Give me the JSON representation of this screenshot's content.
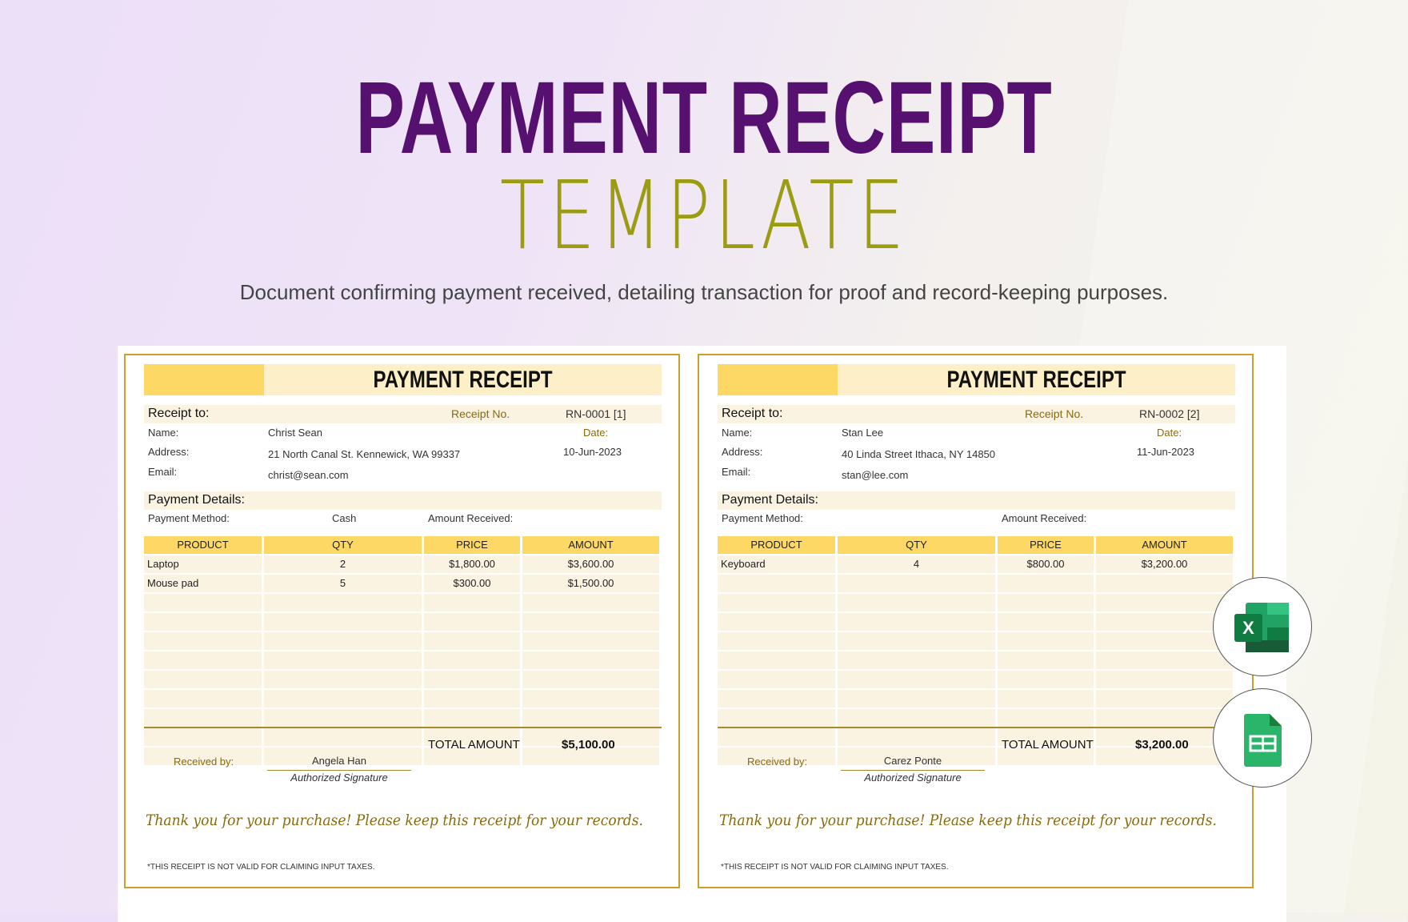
{
  "header": {
    "title": "PAYMENT RECEIPT",
    "subtitle": "TEMPLATE",
    "description": "Document confirming payment received, detailing transaction for proof and record-keeping purposes."
  },
  "colors": {
    "title": "#561170",
    "subtitle": "#9c9c14",
    "accent": "#fdd865",
    "band": "#faf3e2",
    "gold": "#8a6a0c"
  },
  "labels": {
    "heading": "PAYMENT RECEIPT",
    "receipt_to": "Receipt to:",
    "receipt_no": "Receipt No.",
    "name": "Name:",
    "address": "Address:",
    "email": "Email:",
    "date": "Date:",
    "payment_details": "Payment Details:",
    "payment_method": "Payment Method:",
    "amount_received": "Amount Received:",
    "columns": [
      "PRODUCT",
      "QTY",
      "PRICE",
      "AMOUNT"
    ],
    "total_amount": "TOTAL AMOUNT",
    "received_by": "Received by:",
    "authorized_signature": "Authorized Signature",
    "thanks": "Thank you for your purchase! Please keep this receipt for your records.",
    "disclaimer": "*THIS RECEIPT IS NOT VALID FOR CLAIMING INPUT TAXES."
  },
  "receipts": [
    {
      "receipt_no": "RN-0001 [1]",
      "name": "Christ Sean",
      "address": "21 North Canal St. Kennewick, WA 99337",
      "email": "christ@sean.com",
      "date": "10-Jun-2023",
      "payment_method": "Cash",
      "items": [
        [
          "Laptop",
          "2",
          "$1,800.00",
          "$3,600.00"
        ],
        [
          "Mouse pad",
          "5",
          "$300.00",
          "$1,500.00"
        ]
      ],
      "total": "$5,100.00",
      "received_by": "Angela Han"
    },
    {
      "receipt_no": "RN-0002 [2]",
      "name": "Stan Lee",
      "address": "40 Linda Street Ithaca, NY 14850",
      "email": "stan@lee.com",
      "date": "11-Jun-2023",
      "payment_method": "",
      "items": [
        [
          "Keyboard",
          "4",
          "$800.00",
          "$3,200.00"
        ]
      ],
      "total": "$3,200.00",
      "received_by": "Carez Ponte"
    }
  ],
  "icons": [
    "microsoft-excel-icon",
    "google-sheets-icon"
  ]
}
